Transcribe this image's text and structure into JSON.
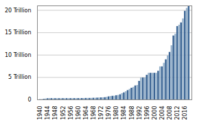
{
  "chart_data": {
    "type": "bar",
    "x": [
      1940,
      1941,
      1942,
      1943,
      1944,
      1945,
      1946,
      1947,
      1948,
      1949,
      1950,
      1951,
      1952,
      1953,
      1954,
      1955,
      1956,
      1957,
      1958,
      1959,
      1960,
      1961,
      1962,
      1963,
      1964,
      1965,
      1966,
      1967,
      1968,
      1969,
      1970,
      1971,
      1972,
      1973,
      1974,
      1975,
      1976,
      1977,
      1978,
      1979,
      1980,
      1981,
      1982,
      1983,
      1984,
      1985,
      1986,
      1987,
      1988,
      1989,
      1990,
      1991,
      1992,
      1993,
      1994,
      1995,
      1996,
      1997,
      1998,
      1999,
      2000,
      2001,
      2002,
      2003,
      2004,
      2005,
      2006,
      2007,
      2008,
      2009,
      2010,
      2011,
      2012,
      2013,
      2014,
      2015,
      2016,
      2017,
      2018
    ],
    "values": [
      0.049,
      0.065,
      0.125,
      0.21,
      0.26,
      0.3,
      0.275,
      0.275,
      0.275,
      0.275,
      0.275,
      0.275,
      0.275,
      0.275,
      0.281,
      0.281,
      0.278,
      0.278,
      0.288,
      0.293,
      0.293,
      0.298,
      0.3,
      0.309,
      0.324,
      0.328,
      0.33,
      0.336,
      0.365,
      0.365,
      0.395,
      0.43,
      0.45,
      0.465,
      0.495,
      0.577,
      0.682,
      0.752,
      0.802,
      0.83,
      0.935,
      0.985,
      1.143,
      1.389,
      1.573,
      1.824,
      2.079,
      2.352,
      2.611,
      2.8,
      3.123,
      3.23,
      4.145,
      4.9,
      4.9,
      4.9,
      5.5,
      5.95,
      5.95,
      5.95,
      5.95,
      5.95,
      6.4,
      7.384,
      7.384,
      8.184,
      8.965,
      9.815,
      10.615,
      12.104,
      14.294,
      14.694,
      16.394,
      16.699,
      17.212,
      18.113,
      19.808,
      20.456,
      21.0
    ],
    "colors": [
      "#3a6494",
      "#9ab4cc",
      "#3a6494",
      "#9ab4cc",
      "#3a6494",
      "#9ab4cc",
      "#3a6494",
      "#9ab4cc",
      "#3a6494",
      "#9ab4cc",
      "#3a6494",
      "#9ab4cc",
      "#3a6494",
      "#9ab4cc",
      "#3a6494",
      "#9ab4cc",
      "#3a6494",
      "#9ab4cc",
      "#3a6494",
      "#9ab4cc",
      "#3a6494",
      "#9ab4cc",
      "#3a6494",
      "#9ab4cc",
      "#3a6494",
      "#9ab4cc",
      "#3a6494",
      "#9ab4cc",
      "#3a6494",
      "#9ab4cc",
      "#3a6494",
      "#9ab4cc",
      "#3a6494",
      "#9ab4cc",
      "#3a6494",
      "#9ab4cc",
      "#3a6494",
      "#9ab4cc",
      "#3a6494",
      "#9ab4cc",
      "#3a6494",
      "#9ab4cc",
      "#3a6494",
      "#9ab4cc",
      "#3a6494",
      "#9ab4cc",
      "#3a6494",
      "#9ab4cc",
      "#3a6494",
      "#9ab4cc",
      "#3a6494",
      "#9ab4cc",
      "#3a6494",
      "#9ab4cc",
      "#3a6494",
      "#9ab4cc",
      "#3a6494",
      "#9ab4cc",
      "#3a6494",
      "#9ab4cc",
      "#3a6494",
      "#9ab4cc",
      "#3a6494",
      "#9ab4cc",
      "#3a6494",
      "#9ab4cc",
      "#3a6494",
      "#9ab4cc",
      "#3a6494",
      "#9ab4cc",
      "#3a6494",
      "#9ab4cc",
      "#3a6494",
      "#9ab4cc",
      "#3a6494",
      "#9ab4cc",
      "#3a6494",
      "#9ab4cc",
      "#3a6494"
    ],
    "xlim": [
      1938.5,
      2019.5
    ],
    "xticks": [
      1940,
      1944,
      1948,
      1952,
      1956,
      1960,
      1964,
      1968,
      1972,
      1976,
      1980,
      1984,
      1988,
      1992,
      1996,
      2000,
      2004,
      2008,
      2012,
      2016
    ],
    "ylim": [
      0,
      21
    ],
    "yticks": [
      0,
      {
        "value": 5,
        "label": "5 Trillion"
      },
      {
        "value": 10,
        "label": "10 Trillion"
      },
      {
        "value": 15,
        "label": "15 Trillion"
      },
      {
        "value": 20,
        "label": "20 Trillion"
      }
    ],
    "grid": true
  }
}
